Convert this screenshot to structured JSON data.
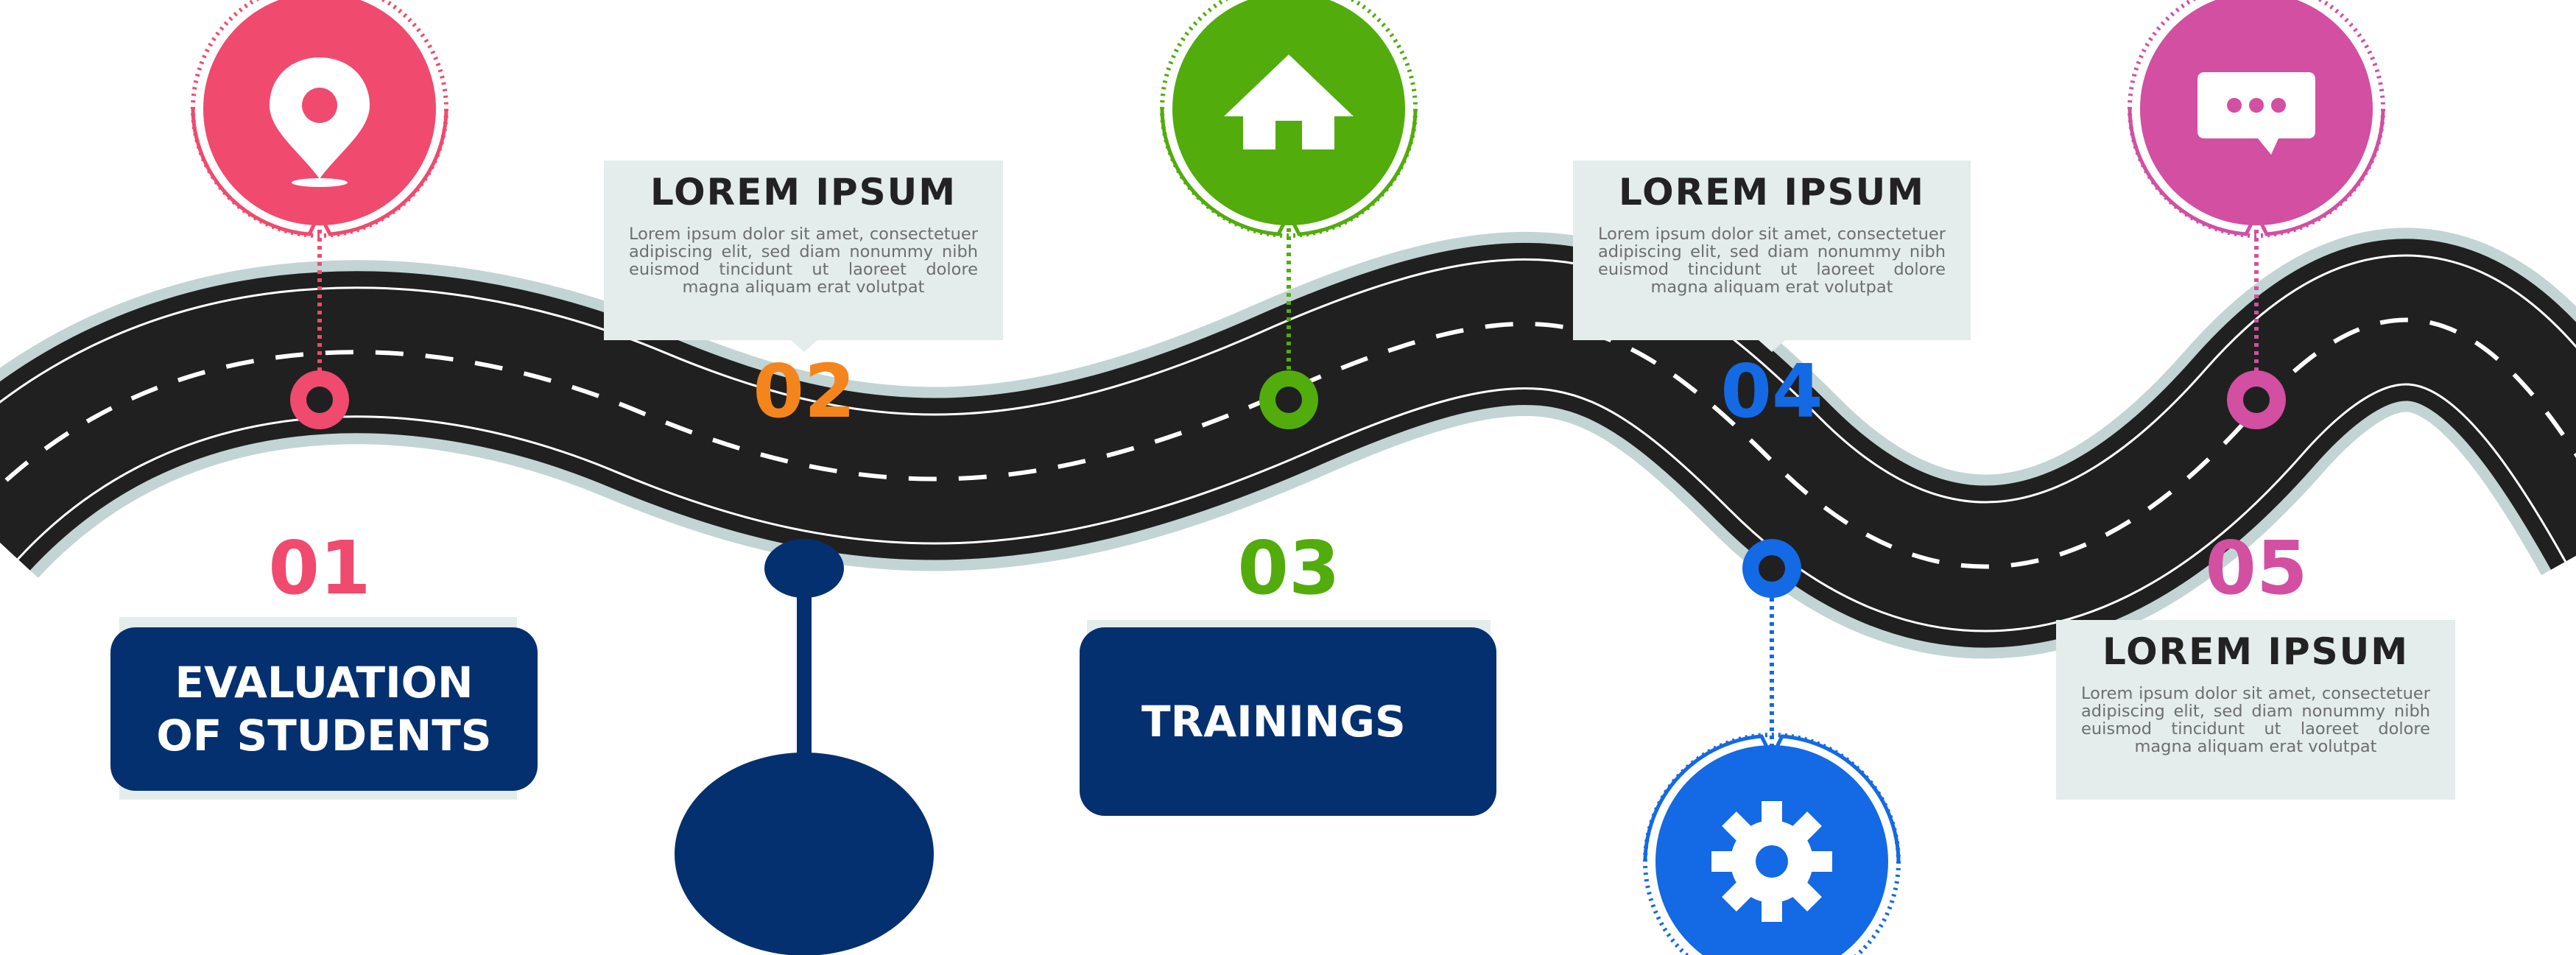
{
  "colors": {
    "road": "#202020",
    "road_edge": "#c3d4d4",
    "pink": "#f04a6e",
    "orange": "#f3851c",
    "green": "#52ac0c",
    "blue": "#1469e4",
    "magenta": "#d24fa2",
    "navy": "#04306f",
    "box_bg": "#e4ecec"
  },
  "milestones": [
    {
      "number": "01",
      "label": "EVALUATION\nOF STUDENTS",
      "icon": "location-pin-icon",
      "color": "pink"
    },
    {
      "number": "02",
      "title": "LOREM IPSUM",
      "text": "Lorem ipsum dolor sit amet, consectetuer adipiscing elit, sed diam nonummy nibh euismod tincidunt ut laoreet dolore magna aliquam erat volutpat",
      "color": "orange"
    },
    {
      "number": "03",
      "label": "TRAININGS",
      "icon": "home-icon",
      "color": "green"
    },
    {
      "number": "04",
      "title": "LOREM IPSUM",
      "text": "Lorem ipsum dolor sit amet, consectetuer adipiscing elit, sed diam nonummy nibh euismod tincidunt ut laoreet dolore magna aliquam erat volutpat",
      "icon": "gear-icon",
      "color": "blue"
    },
    {
      "number": "05",
      "title": "LOREM IPSUM",
      "text": "Lorem ipsum dolor sit amet, consectetuer adipiscing elit, sed diam nonummy nibh euismod tincidunt ut laoreet dolore magna aliquam erat volutpat",
      "icon": "chat-bubble-icon",
      "color": "magenta"
    }
  ]
}
